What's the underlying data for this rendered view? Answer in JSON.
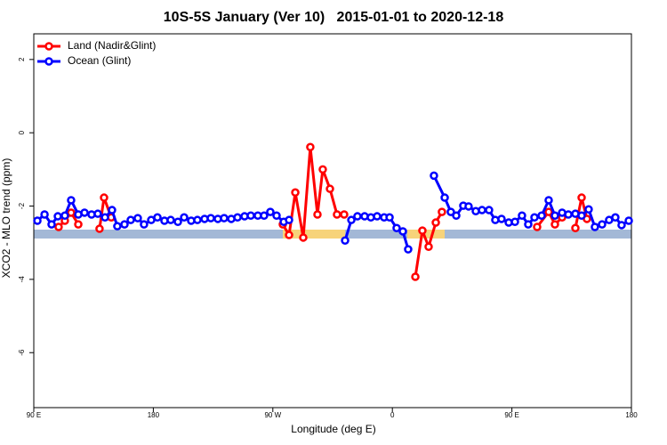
{
  "chart_data": {
    "type": "line",
    "title": "10S-5S January (Ver 10)   2015-01-01 to 2020-12-18",
    "x_label": "Longitude (deg E)",
    "y_label": "XCO2 - MLO trend (ppm)",
    "xlim": [
      -270,
      180
    ],
    "ylim": [
      -7.5,
      2.7
    ],
    "xticks": [
      {
        "value": -270,
        "label": "90 E"
      },
      {
        "value": -180,
        "label": "180"
      },
      {
        "value": -90,
        "label": "90 W"
      },
      0,
      {
        "value": 90,
        "label": "90 E"
      },
      {
        "value": 180,
        "label": "180"
      }
    ],
    "yticks": [
      -6,
      -4,
      -2,
      0,
      2
    ],
    "grid": false,
    "legend": "top-left",
    "series": [
      {
        "name": "Land (Nadir&Glint)",
        "color": "#ff0000",
        "x": [
          -251.3,
          -246.6,
          -241.9,
          -236.5,
          null,
          -220.5,
          -217.1,
          -211.7,
          null,
          -82.5,
          -77.8,
          -73.1,
          -67.1,
          -61.8,
          -56.4,
          -52.4,
          -47.0,
          -41.7,
          -36.3,
          null,
          17.3,
          22.6,
          27.3,
          32.7,
          37.3,
          null,
          109.0,
          117.7,
          122.4,
          127.8,
          null,
          137.8,
          142.5,
          146.5
        ],
        "values": [
          -2.57,
          -2.4,
          -2.18,
          -2.5,
          null,
          -2.62,
          -1.77,
          -2.31,
          null,
          -2.5,
          -2.79,
          -1.63,
          -2.86,
          -0.39,
          -2.23,
          -1.0,
          -1.53,
          -2.23,
          -2.23,
          null,
          -3.93,
          -2.67,
          -3.11,
          -2.45,
          -2.16,
          null,
          -2.57,
          -2.16,
          -2.5,
          -2.31,
          null,
          -2.6,
          -1.77,
          -2.35
        ]
      },
      {
        "name": "Ocean (Glint)",
        "color": "#0000ff",
        "x": [
          -267.3,
          -261.9,
          -256.6,
          -251.9,
          -246.6,
          -241.9,
          -236.5,
          -231.8,
          -226.5,
          -221.8,
          -216.4,
          -211.1,
          -207.1,
          -201.7,
          -197.0,
          -191.7,
          -187.0,
          -181.6,
          -176.9,
          -171.6,
          -166.9,
          -161.5,
          -156.8,
          -151.5,
          -146.8,
          -141.4,
          -136.7,
          -131.4,
          -126.7,
          -121.3,
          -116.6,
          -111.3,
          -106.6,
          -101.3,
          -96.6,
          -91.9,
          -87.2,
          -81.8,
          -77.8,
          null,
          -35.6,
          -30.9,
          -26.3,
          -20.9,
          -16.2,
          -11.5,
          -6.2,
          -2.1,
          3.2,
          7.9,
          11.9,
          null,
          31.3,
          39.4,
          44.0,
          48.1,
          53.4,
          57.4,
          62.8,
          67.5,
          72.8,
          77.5,
          82.2,
          87.6,
          92.3,
          97.6,
          102.3,
          107.0,
          112.4,
          117.7,
          122.4,
          127.8,
          132.5,
          137.8,
          142.5,
          147.8,
          152.5,
          157.9,
          163.2,
          167.9,
          172.6,
          178.0
        ],
        "values": [
          -2.4,
          -2.23,
          -2.5,
          -2.28,
          -2.26,
          -1.84,
          -2.23,
          -2.18,
          -2.23,
          -2.21,
          -2.31,
          -2.11,
          -2.55,
          -2.5,
          -2.38,
          -2.33,
          -2.5,
          -2.38,
          -2.31,
          -2.4,
          -2.38,
          -2.43,
          -2.31,
          -2.4,
          -2.38,
          -2.35,
          -2.33,
          -2.35,
          -2.33,
          -2.35,
          -2.31,
          -2.28,
          -2.26,
          -2.26,
          -2.26,
          -2.16,
          -2.26,
          -2.43,
          -2.38,
          null,
          -2.94,
          -2.38,
          -2.28,
          -2.28,
          -2.31,
          -2.28,
          -2.31,
          -2.31,
          -2.6,
          -2.69,
          -3.18,
          null,
          -1.17,
          -1.77,
          -2.16,
          -2.26,
          -1.99,
          -2.01,
          -2.14,
          -2.11,
          -2.11,
          -2.38,
          -2.35,
          -2.45,
          -2.43,
          -2.26,
          -2.5,
          -2.31,
          -2.26,
          -1.84,
          -2.26,
          -2.18,
          -2.23,
          -2.21,
          -2.26,
          -2.09,
          -2.57,
          -2.5,
          -2.38,
          -2.31,
          -2.52,
          -2.4
        ]
      }
    ]
  }
}
